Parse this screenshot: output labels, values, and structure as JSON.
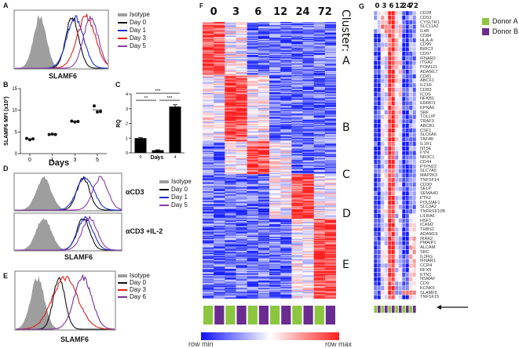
{
  "panels": {
    "A": {
      "label": "A",
      "xlabel": "SLAMF6"
    },
    "B": {
      "label": "B",
      "xlabel": "Days",
      "ylabel": "SLAMF6 MFI (x10³)"
    },
    "C": {
      "label": "C",
      "xlabel": "Days",
      "ylabel": "RQ"
    },
    "D": {
      "label": "D",
      "xlabel": "SLAMF6",
      "conditions": [
        "αCD3",
        "αCD3 +IL-2"
      ]
    },
    "E": {
      "label": "E",
      "xlabel": "SLAMF6"
    },
    "F": {
      "label": "F",
      "cluster_title": "Cluster:",
      "scale_min_label": "row min",
      "scale_max_label": "row max"
    },
    "G": {
      "label": "G"
    }
  },
  "colors": {
    "isotype": "#9e9e9e",
    "day0": "#111111",
    "day1": "#1f2fd0",
    "day3": "#e0201c",
    "day5": "#8a3aa8",
    "day6": "#7a2fa0",
    "heat_min": "#1010ff",
    "heat_mid": "#ffffff",
    "heat_max": "#ff2020",
    "donor_a": "#8cc63f",
    "donor_b": "#6a2c91"
  },
  "chart_data": [
    {
      "id": "A",
      "type": "histogram",
      "title": "",
      "xlabel": "SLAMF6",
      "ylabel": "",
      "legend": [
        "Isotype",
        "Day 0",
        "Day 1",
        "Day 3",
        "Day 5"
      ],
      "legend_position": "right",
      "series": [
        {
          "name": "Isotype",
          "peak": 0.27,
          "width": 0.07,
          "filled": true
        },
        {
          "name": "Day 0",
          "peak": 0.62,
          "width": 0.07
        },
        {
          "name": "Day 1",
          "peak": 0.65,
          "width": 0.09
        },
        {
          "name": "Day 3",
          "peak": 0.77,
          "width": 0.1
        },
        {
          "name": "Day 5",
          "peak": 0.82,
          "width": 0.08
        }
      ]
    },
    {
      "id": "B",
      "type": "scatter",
      "title": "",
      "xlabel": "Days",
      "ylabel": "SLAMF6 MFI (x10³)",
      "categories": [
        "0",
        "1",
        "3",
        "5"
      ],
      "ylim": [
        0,
        15
      ],
      "yticks": [
        0,
        5,
        10,
        15
      ],
      "points": [
        [
          3.5,
          3.2,
          3.4
        ],
        [
          4.4,
          4.5,
          4.4
        ],
        [
          7.5,
          7.3,
          7.4
        ],
        [
          11.0,
          9.6,
          9.7
        ]
      ],
      "means": [
        3.4,
        4.45,
        7.4,
        10.1
      ]
    },
    {
      "id": "C",
      "type": "bar",
      "title": "",
      "xlabel": "Days",
      "ylabel": "RQ",
      "categories": [
        "0",
        "1",
        "4"
      ],
      "values": [
        1.0,
        0.18,
        3.15
      ],
      "errors": [
        0.05,
        0.03,
        0.12
      ],
      "ylim": [
        0,
        4
      ],
      "yticks": [
        0,
        1,
        2,
        3,
        4
      ],
      "significance": [
        {
          "from": "0",
          "to": "4",
          "label": "***"
        },
        {
          "from": "0",
          "to": "1",
          "label": "**"
        },
        {
          "from": "1",
          "to": "4",
          "label": "***"
        }
      ]
    },
    {
      "id": "D-top",
      "type": "histogram",
      "condition": "αCD3",
      "xlabel": "",
      "legend": [
        "Isotype",
        "Day 0",
        "Day 1",
        "Day 5"
      ],
      "legend_position": "right",
      "series": [
        {
          "name": "Isotype",
          "peak": 0.27,
          "width": 0.07,
          "filled": true
        },
        {
          "name": "Day 0",
          "peak": 0.64,
          "width": 0.06
        },
        {
          "name": "Day 1",
          "peak": 0.66,
          "width": 0.08
        },
        {
          "name": "Day 5",
          "peak": 0.8,
          "width": 0.07
        }
      ]
    },
    {
      "id": "D-bottom",
      "type": "histogram",
      "condition": "αCD3 +IL-2",
      "xlabel": "SLAMF6",
      "series": [
        {
          "name": "Isotype",
          "peak": 0.27,
          "width": 0.07,
          "filled": true
        },
        {
          "name": "Day 0",
          "peak": 0.64,
          "width": 0.06
        },
        {
          "name": "Day 1",
          "peak": 0.66,
          "width": 0.07
        },
        {
          "name": "Day 5",
          "peak": 0.7,
          "width": 0.07
        }
      ]
    },
    {
      "id": "E",
      "type": "histogram",
      "xlabel": "SLAMF6",
      "legend": [
        "Isotype",
        "Day 0",
        "Day 3",
        "Day 6"
      ],
      "legend_position": "right",
      "series": [
        {
          "name": "Isotype",
          "peak": 0.22,
          "width": 0.07,
          "filled": true
        },
        {
          "name": "Day 0",
          "peak": 0.44,
          "width": 0.06
        },
        {
          "name": "Day 3",
          "peak": 0.5,
          "width": 0.13
        },
        {
          "name": "Day 6",
          "peak": 0.68,
          "width": 0.09
        }
      ]
    },
    {
      "id": "F",
      "type": "heatmap",
      "title": "",
      "column_groups": [
        "0",
        "3",
        "6",
        "12",
        "24",
        "72"
      ],
      "columns_per_group": 2,
      "donors": [
        "Donor A",
        "Donor B",
        "Donor A",
        "Donor B",
        "Donor A",
        "Donor B",
        "Donor A",
        "Donor B",
        "Donor A",
        "Donor B",
        "Donor A",
        "Donor B"
      ],
      "clusters": [
        {
          "name": "A",
          "peak_group": "0",
          "row_fraction": 0.19
        },
        {
          "name": "B",
          "peak_group": "3",
          "row_fraction": 0.24
        },
        {
          "name": "C",
          "peak_group": "6",
          "row_fraction": 0.12
        },
        {
          "name": "D",
          "peak_group": "24",
          "row_fraction": 0.16
        },
        {
          "name": "E",
          "peak_group": "72",
          "row_fraction": 0.29
        }
      ],
      "scale": [
        "row min",
        "row max"
      ]
    },
    {
      "id": "G",
      "type": "heatmap",
      "column_groups": [
        "0",
        "3",
        "6",
        "12",
        "24",
        "72"
      ],
      "columns_per_group": 2,
      "legend": [
        "Donor A",
        "Donor B"
      ],
      "legend_position": "right",
      "genes": [
        "CD28",
        "CD53",
        "CYSLTR1",
        "SLC11A2",
        "IL4R",
        "CD84",
        "HLA-A",
        "CD96",
        "BIRC3",
        "CD97",
        "IFNAR2",
        "ITGA2",
        "POM121",
        "ADAM17",
        "CD81",
        "ABCF1",
        "IL21R",
        "CD83",
        "ICOS",
        "NFKB1",
        "ERRFI1",
        "KPNA6",
        "SRF",
        "TOLLIP",
        "TRAF3",
        "ABCB1",
        "CSF1",
        "SLC6A6",
        "TAF4B",
        "IL1R1",
        "NT5E",
        "FYN",
        "NR3C1",
        "CD44",
        "PTPN22",
        "SLC7A5",
        "MAP2K3",
        "TNFSF14",
        "CD3D",
        "SELP",
        "SEMA4D",
        "PTK2",
        "POU2AF1",
        "SLC3A2",
        "TNFRSF10B",
        "LILRA6",
        "HSF1",
        "ICAM2",
        "THBS1",
        "ADAM19",
        "IRAK2",
        "PMAIP1",
        "ALCAM",
        "SRC",
        "IL2RG",
        "IFNAR1",
        "CCR4",
        "RFX5",
        "KTN1",
        "NSMAF",
        "CD9",
        "KCNK5",
        "SLAMF6",
        "TNFSF15"
      ],
      "highlighted_gene": "SLAMF6"
    }
  ]
}
